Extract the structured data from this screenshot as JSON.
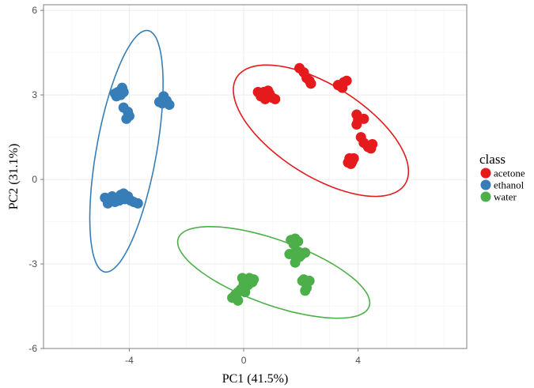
{
  "chart_data": {
    "type": "scatter",
    "xlabel": "PC1 (41.5%)",
    "ylabel": "PC2 (31.1%)",
    "xlim": [
      -7.0,
      7.8
    ],
    "ylim": [
      -6.0,
      6.2
    ],
    "x_ticks": [
      -4,
      0,
      4
    ],
    "y_ticks": [
      -6,
      -3,
      0,
      3,
      6
    ],
    "x_tick_labels": [
      "-4",
      "0",
      "4"
    ],
    "y_tick_labels": [
      "-6",
      "-3",
      "0",
      "3",
      "6"
    ],
    "grid": true,
    "legend": {
      "title": "class",
      "position": "right"
    },
    "series": [
      {
        "name": "acetone",
        "color": "#E41A1C",
        "points": [
          [
            0.5,
            3.1
          ],
          [
            0.6,
            3.0
          ],
          [
            0.7,
            3.1
          ],
          [
            0.8,
            2.95
          ],
          [
            0.9,
            3.05
          ],
          [
            0.75,
            2.85
          ],
          [
            1.0,
            2.9
          ],
          [
            0.85,
            3.15
          ],
          [
            0.6,
            2.95
          ],
          [
            1.1,
            2.85
          ],
          [
            1.95,
            3.95
          ],
          [
            2.1,
            3.8
          ],
          [
            2.2,
            3.6
          ],
          [
            2.3,
            3.5
          ],
          [
            2.35,
            3.4
          ],
          [
            3.3,
            3.35
          ],
          [
            3.4,
            3.3
          ],
          [
            3.5,
            3.45
          ],
          [
            3.6,
            3.5
          ],
          [
            3.45,
            3.25
          ],
          [
            3.95,
            2.3
          ],
          [
            4.0,
            2.1
          ],
          [
            4.2,
            2.15
          ],
          [
            3.95,
            1.95
          ],
          [
            4.1,
            1.5
          ],
          [
            4.2,
            1.3
          ],
          [
            4.35,
            1.15
          ],
          [
            4.45,
            1.1
          ],
          [
            4.5,
            1.25
          ],
          [
            3.7,
            0.75
          ],
          [
            3.8,
            0.65
          ],
          [
            3.85,
            0.75
          ],
          [
            3.75,
            0.55
          ],
          [
            3.65,
            0.6
          ]
        ],
        "ellipse": {
          "cx": 2.7,
          "cy": 1.73,
          "rx": 3.5,
          "ry": 1.6,
          "angle_deg": -33
        }
      },
      {
        "name": "ethanol",
        "color": "#377EB8",
        "points": [
          [
            -4.5,
            3.05
          ],
          [
            -4.4,
            3.1
          ],
          [
            -4.25,
            3.25
          ],
          [
            -4.2,
            3.1
          ],
          [
            -4.45,
            2.95
          ],
          [
            -4.3,
            3.0
          ],
          [
            -4.2,
            2.55
          ],
          [
            -4.05,
            2.4
          ],
          [
            -4.0,
            2.25
          ],
          [
            -4.1,
            2.15
          ],
          [
            -2.95,
            2.75
          ],
          [
            -2.8,
            2.95
          ],
          [
            -2.7,
            2.8
          ],
          [
            -2.6,
            2.65
          ],
          [
            -2.85,
            2.7
          ],
          [
            -4.85,
            -0.65
          ],
          [
            -4.7,
            -0.75
          ],
          [
            -4.6,
            -0.6
          ],
          [
            -4.5,
            -0.7
          ],
          [
            -4.4,
            -0.65
          ],
          [
            -4.3,
            -0.55
          ],
          [
            -4.2,
            -0.5
          ],
          [
            -4.15,
            -0.7
          ],
          [
            -4.05,
            -0.6
          ],
          [
            -3.95,
            -0.75
          ],
          [
            -3.85,
            -0.8
          ],
          [
            -4.75,
            -0.85
          ],
          [
            -4.5,
            -0.8
          ],
          [
            -4.35,
            -0.75
          ],
          [
            -3.7,
            -0.85
          ],
          [
            -4.25,
            -0.65
          ]
        ],
        "ellipse": {
          "cx": -4.1,
          "cy": 1.0,
          "rx": 1.05,
          "ry": 4.35,
          "angle_deg": -10
        }
      },
      {
        "name": "water",
        "color": "#4DAF4A",
        "points": [
          [
            -0.4,
            -4.2
          ],
          [
            -0.3,
            -4.1
          ],
          [
            -0.2,
            -4.0
          ],
          [
            -0.1,
            -3.9
          ],
          [
            0.0,
            -3.7
          ],
          [
            0.1,
            -3.6
          ],
          [
            0.2,
            -3.5
          ],
          [
            0.35,
            -3.55
          ],
          [
            0.0,
            -3.8
          ],
          [
            -0.2,
            -4.3
          ],
          [
            0.15,
            -3.75
          ],
          [
            0.05,
            -4.0
          ],
          [
            0.3,
            -3.65
          ],
          [
            -0.05,
            -3.5
          ],
          [
            1.65,
            -2.15
          ],
          [
            1.8,
            -2.1
          ],
          [
            1.9,
            -2.2
          ],
          [
            1.75,
            -2.3
          ],
          [
            1.85,
            -2.55
          ],
          [
            1.7,
            -2.65
          ],
          [
            2.0,
            -2.7
          ],
          [
            2.15,
            -2.6
          ],
          [
            1.6,
            -2.65
          ],
          [
            1.8,
            -2.95
          ],
          [
            1.95,
            -2.75
          ],
          [
            2.1,
            -3.55
          ],
          [
            2.2,
            -3.65
          ],
          [
            2.3,
            -3.6
          ],
          [
            2.2,
            -3.85
          ],
          [
            2.15,
            -3.95
          ],
          [
            2.05,
            -3.6
          ]
        ],
        "ellipse": {
          "cx": 1.05,
          "cy": -3.3,
          "rx": 3.55,
          "ry": 1.15,
          "angle_deg": -20
        }
      }
    ]
  }
}
